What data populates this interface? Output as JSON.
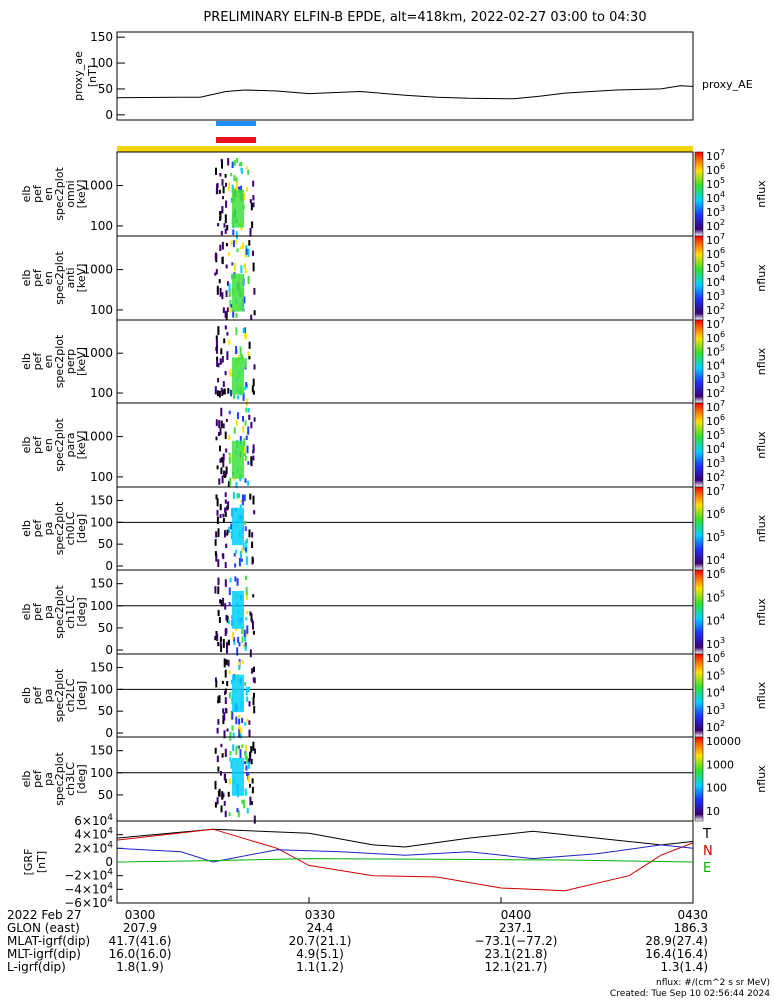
{
  "title": "PRELIMINARY ELFIN-B EPDE, alt=418km, 2022-02-27 03:00 to 04:30",
  "colors": {
    "blue_bar": "#1e90ff",
    "red_bar": "#e8101a",
    "yellow_bar": "#f5d40a",
    "grf_x": "#000000",
    "grf_y": "#d00000",
    "grf_z": "#2020c0",
    "grf_t": "#00b000"
  },
  "chart_data": [
    {
      "type": "line",
      "ylabel": "proxy_ae [nT]",
      "yticks": [
        "150",
        "100",
        "50",
        "0"
      ],
      "ylim": [
        -10,
        160
      ],
      "xlim": [
        0,
        90
      ],
      "series": [
        {
          "name": "proxy_AE",
          "x": [
            0,
            10,
            13,
            17,
            20,
            25,
            30,
            38,
            45,
            50,
            55,
            62,
            66,
            70,
            78,
            85,
            88,
            90
          ],
          "y": [
            33,
            34,
            34,
            45,
            48,
            46,
            41,
            45,
            38,
            34,
            32,
            31,
            36,
            42,
            48,
            50,
            56,
            55
          ]
        }
      ]
    },
    {
      "type": "heatmap",
      "panels": [
        {
          "ylabel": "elb pef en spec2plot omni [keV]",
          "yticks": [
            "1000",
            "100"
          ],
          "zticks": [
            "10^7",
            "10^6",
            "10^5",
            "10^4",
            "10^3",
            "10^2"
          ],
          "zlabel": "nflux"
        },
        {
          "ylabel": "elb pef en spec2plot anti [keV]",
          "yticks": [
            "1000",
            "100"
          ],
          "zticks": [
            "10^7",
            "10^6",
            "10^5",
            "10^4",
            "10^3",
            "10^2"
          ],
          "zlabel": "nflux"
        },
        {
          "ylabel": "elb pef en spec2plot perp [keV]",
          "yticks": [
            "1000",
            "100"
          ],
          "zticks": [
            "10^7",
            "10^6",
            "10^5",
            "10^4",
            "10^3",
            "10^2"
          ],
          "zlabel": "nflux"
        },
        {
          "ylabel": "elb pef en spec2plot para [keV]",
          "yticks": [
            "1000",
            "100"
          ],
          "zticks": [
            "10^7",
            "10^6",
            "10^5",
            "10^4",
            "10^3",
            "10^2"
          ],
          "zlabel": "nflux"
        },
        {
          "ylabel": "elb pef pa spec2plot ch0LC [deg]",
          "yticks": [
            "150",
            "100",
            "50",
            "0"
          ],
          "zticks": [
            "10^7",
            "10^6",
            "10^5",
            "10^4"
          ],
          "zlabel": "nflux"
        },
        {
          "ylabel": "elb pef pa spec2plot ch1LC [deg]",
          "yticks": [
            "150",
            "100",
            "50",
            "0"
          ],
          "zticks": [
            "10^6",
            "10^5",
            "10^4",
            "10^3"
          ],
          "zlabel": "nflux"
        },
        {
          "ylabel": "elb pef pa spec2plot ch2LC [deg]",
          "yticks": [
            "150",
            "100",
            "50",
            "0"
          ],
          "zticks": [
            "10^6",
            "10^5",
            "10^4",
            "10^3",
            "10^2"
          ],
          "zlabel": "nflux"
        },
        {
          "ylabel": "elb pef pa spec2plot ch3LC [deg]",
          "yticks": [
            "150",
            "100",
            "50"
          ],
          "zticks": [
            "10000",
            "1000",
            "100",
            "10"
          ],
          "zlabel": "nflux"
        }
      ]
    },
    {
      "type": "line",
      "ylabel": "[GRF [nT]",
      "yticks": [
        "6×10^4",
        "4×10^4",
        "2×10^4",
        "0",
        "−2×10^4",
        "−4×10^4",
        "−6×10^4"
      ],
      "ylim": [
        -60000,
        60000
      ],
      "legend": [
        "T",
        "N",
        "E"
      ],
      "series": [
        {
          "x": [
            0,
            15,
            30,
            40,
            45,
            55,
            65,
            75,
            85,
            90
          ],
          "y": [
            35000,
            48000,
            42000,
            25000,
            22000,
            35000,
            45000,
            35000,
            25000,
            30000
          ]
        },
        {
          "x": [
            0,
            15,
            25,
            30,
            40,
            50,
            60,
            70,
            80,
            85,
            90
          ],
          "y": [
            32000,
            48000,
            20000,
            -5000,
            -20000,
            -22000,
            -38000,
            -42000,
            -20000,
            10000,
            28000
          ]
        },
        {
          "x": [
            0,
            10,
            15,
            25,
            35,
            45,
            55,
            65,
            75,
            85,
            90
          ],
          "y": [
            20000,
            15000,
            0,
            18000,
            15000,
            10000,
            15000,
            5000,
            12000,
            25000,
            20000
          ]
        },
        {
          "x": [
            0,
            15,
            30,
            50,
            70,
            90
          ],
          "y": [
            0,
            2000,
            5000,
            4000,
            3000,
            0
          ]
        }
      ]
    }
  ],
  "axis": {
    "rows": [
      {
        "label": "2022 Feb 27",
        "values": [
          "0300",
          "0330",
          "0400",
          "0430"
        ]
      },
      {
        "label": "GLON (east)",
        "values": [
          "207.9",
          "24.4",
          "237.1",
          "186.3"
        ]
      },
      {
        "label": "MLAT-igrf(dip)",
        "values": [
          "41.7(41.6)",
          "20.7(21.1)",
          "−73.1(−77.2)",
          "28.9(27.4)"
        ]
      },
      {
        "label": "MLT-igrf(dip)",
        "values": [
          "16.0(16.0)",
          "4.9(5.1)",
          "23.1(21.8)",
          "16.4(16.4)"
        ]
      },
      {
        "label": "L-igrf(dip)",
        "values": [
          "1.8(1.9)",
          "1.1(1.2)",
          "12.1(21.7)",
          "1.3(1.4)"
        ]
      }
    ]
  },
  "footer": {
    "units": "nflux: #/(cm^2 s sr MeV)",
    "created": "Created: Tue Sep 10 02:56:44 2024"
  }
}
